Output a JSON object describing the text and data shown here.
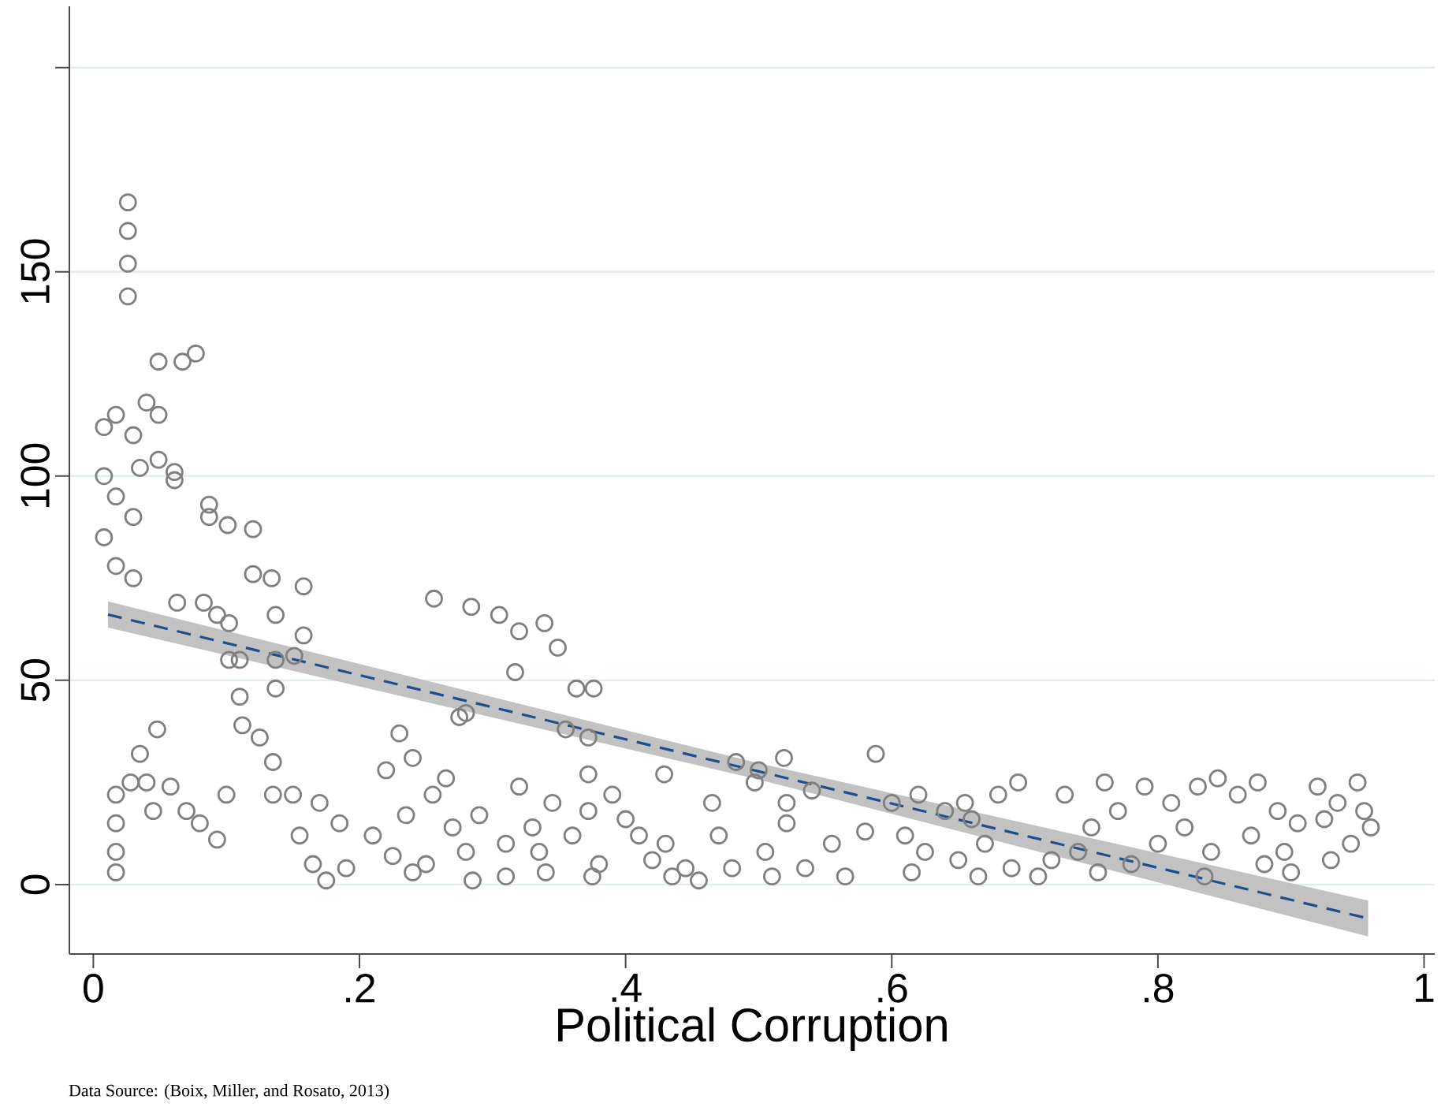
{
  "chart_data": {
    "type": "scatter",
    "xlabel": "Political Corruption",
    "annotations": [
      "Data Source: (Boix, Miller, and Rosato, 2013)"
    ],
    "xlim": [
      -0.018,
      1.008
    ],
    "ylim": [
      -17,
      215
    ],
    "xticks": [
      {
        "value": 0,
        "label": "0"
      },
      {
        "value": 0.2,
        "label": ".2"
      },
      {
        "value": 0.4,
        "label": ".4"
      },
      {
        "value": 0.6,
        "label": ".6"
      },
      {
        "value": 0.8,
        "label": ".8"
      },
      {
        "value": 1,
        "label": "1"
      }
    ],
    "yticks": [
      0,
      50,
      100,
      150,
      {
        "value": 200,
        "label": null
      }
    ],
    "grid": "y",
    "marker": "circle",
    "series": [
      {
        "type": "scatter",
        "color": "#808080",
        "x": [
          0.017,
          0.017,
          0.017,
          0.017,
          0.026,
          0.026,
          0.026,
          0.026,
          0.008,
          0.008,
          0.008,
          0.017,
          0.017,
          0.017,
          0.03,
          0.03,
          0.03,
          0.035,
          0.049,
          0.049,
          0.049,
          0.04,
          0.067,
          0.077,
          0.061,
          0.061,
          0.087,
          0.087,
          0.101,
          0.12,
          0.12,
          0.134,
          0.158,
          0.063,
          0.083,
          0.093,
          0.102,
          0.102,
          0.11,
          0.11,
          0.137,
          0.137,
          0.137,
          0.158,
          0.151,
          0.035,
          0.04,
          0.045,
          0.048,
          0.058,
          0.028,
          0.07,
          0.08,
          0.093,
          0.112,
          0.125,
          0.135,
          0.135,
          0.1,
          0.15,
          0.155,
          0.165,
          0.17,
          0.175,
          0.185,
          0.19,
          0.21,
          0.22,
          0.225,
          0.23,
          0.235,
          0.24,
          0.24,
          0.25,
          0.255,
          0.265,
          0.27,
          0.28,
          0.285,
          0.29,
          0.275,
          0.256,
          0.284,
          0.305,
          0.32,
          0.317,
          0.339,
          0.28,
          0.349,
          0.363,
          0.376,
          0.355,
          0.372,
          0.372,
          0.372,
          0.32,
          0.33,
          0.34,
          0.345,
          0.335,
          0.31,
          0.31,
          0.36,
          0.375,
          0.38,
          0.39,
          0.4,
          0.41,
          0.42,
          0.43,
          0.435,
          0.429,
          0.445,
          0.455,
          0.465,
          0.47,
          0.48,
          0.483,
          0.5,
          0.519,
          0.497,
          0.505,
          0.51,
          0.521,
          0.521,
          0.535,
          0.54,
          0.555,
          0.565,
          0.58,
          0.588,
          0.6,
          0.61,
          0.615,
          0.62,
          0.625,
          0.64,
          0.65,
          0.66,
          0.655,
          0.67,
          0.665,
          0.68,
          0.695,
          0.69,
          0.71,
          0.72,
          0.73,
          0.74,
          0.75,
          0.76,
          0.755,
          0.77,
          0.78,
          0.79,
          0.8,
          0.81,
          0.82,
          0.83,
          0.84,
          0.845,
          0.835,
          0.86,
          0.87,
          0.875,
          0.88,
          0.89,
          0.895,
          0.9,
          0.905,
          0.92,
          0.925,
          0.935,
          0.93,
          0.95,
          0.955,
          0.96,
          0.945
        ],
        "values": [
          22,
          15,
          8,
          3,
          167,
          160,
          152,
          144,
          112,
          100,
          85,
          115,
          95,
          78,
          110,
          90,
          75,
          102,
          128,
          115,
          104,
          118,
          128,
          130,
          101,
          99,
          93,
          90,
          88,
          87,
          76,
          75,
          73,
          69,
          69,
          66,
          64,
          55,
          55,
          46,
          66,
          55,
          48,
          61,
          56,
          32,
          25,
          18,
          38,
          24,
          25,
          18,
          15,
          11,
          39,
          36,
          30,
          22,
          22,
          22,
          12,
          5,
          20,
          1,
          15,
          4,
          12,
          28,
          7,
          37,
          17,
          3,
          31,
          5,
          22,
          26,
          14,
          8,
          1,
          17,
          41,
          70,
          68,
          66,
          62,
          52,
          64,
          42,
          58,
          48,
          48,
          38,
          36,
          27,
          18,
          24,
          14,
          3,
          20,
          8,
          10,
          2,
          12,
          2,
          5,
          22,
          16,
          12,
          6,
          10,
          2,
          27,
          4,
          1,
          20,
          12,
          4,
          30,
          28,
          31,
          25,
          8,
          2,
          20,
          15,
          4,
          23,
          10,
          2,
          13,
          32,
          20,
          12,
          3,
          22,
          8,
          18,
          6,
          16,
          20,
          10,
          2,
          22,
          25,
          4,
          2,
          6,
          22,
          8,
          14,
          25,
          3,
          18,
          5,
          24,
          10,
          20,
          14,
          24,
          8,
          26,
          2,
          22,
          12,
          25,
          5,
          18,
          8,
          3,
          15,
          24,
          16,
          20,
          6,
          25,
          18,
          14,
          10
        ]
      },
      {
        "type": "line",
        "color": "#1f4e8c",
        "line_style": "dashed",
        "marker": "none",
        "x": [
          0.011,
          0.5,
          0.958
        ],
        "values": [
          66.1,
          27.7,
          -8.3
        ],
        "lower": [
          62.9,
          25.7,
          -12.7
        ],
        "upper": [
          69.3,
          29.7,
          -3.9
        ]
      }
    ]
  }
}
